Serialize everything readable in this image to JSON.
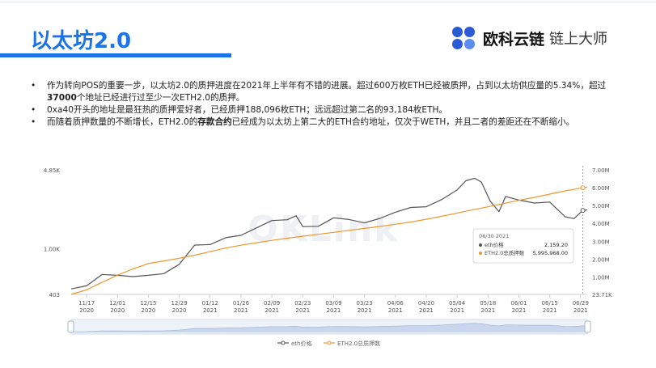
{
  "slide": {
    "title": "以太坊2.0",
    "brand_name": "欧科云链",
    "brand_subtitle": "链上大师"
  },
  "bullets": [
    {
      "parts": [
        "作为转向POS的重要一步，以太坊2.0的质押进度在2021年上半年有不错的进展。超过600万枚ETH已经被质押，占到以太坊供应量的5.34%，超过",
        "37000",
        "个地址已经进行过至少一次ETH2.0的质押。"
      ]
    },
    {
      "parts": [
        "0xa40开头的地址是最狂热的质押爱好者，已经质押188,096枚ETH；远远超过第二名的93,184枚ETH。"
      ]
    },
    {
      "parts": [
        "而随着质押数量的不断增长，ETH2.0的",
        "存款合约",
        "已经成为以太坊上第二大的ETH合约地址，仅次于WETH，并且二者的差距还在不断缩小。"
      ]
    }
  ],
  "chart_data": {
    "type": "line",
    "watermark": "OKLink",
    "x_ticks": [
      {
        "date": "11/17",
        "year": "2020"
      },
      {
        "date": "12/01",
        "year": "2020"
      },
      {
        "date": "12/15",
        "year": "2020"
      },
      {
        "date": "12/29",
        "year": "2020"
      },
      {
        "date": "01/12",
        "year": "2021"
      },
      {
        "date": "01/26",
        "year": "2021"
      },
      {
        "date": "02/09",
        "year": "2021"
      },
      {
        "date": "02/23",
        "year": "2021"
      },
      {
        "date": "03/09",
        "year": "2021"
      },
      {
        "date": "03/23",
        "year": "2021"
      },
      {
        "date": "04/06",
        "year": "2021"
      },
      {
        "date": "04/20",
        "year": "2021"
      },
      {
        "date": "05/04",
        "year": "2021"
      },
      {
        "date": "05/18",
        "year": "2021"
      },
      {
        "date": "06/01",
        "year": "2021"
      },
      {
        "date": "06/15",
        "year": "2021"
      },
      {
        "date": "06/29",
        "year": "2021"
      }
    ],
    "x_start": "2020-11-10",
    "x_end": "2021-07-02",
    "y_left_ticks": [
      {
        "label": "4.85K"
      },
      {
        "label": "1.00K"
      },
      {
        "label": "403"
      }
    ],
    "y_left_lim": [
      403,
      4850
    ],
    "y_left_scale": "log",
    "y_right_ticks": [
      "7.00M",
      "6.00M",
      "5.00M",
      "4.00M",
      "3.00M",
      "2.00M",
      "1.00M",
      "23.71K"
    ],
    "y_right_lim": [
      23710,
      7000000
    ],
    "series": [
      {
        "name": "eth价格",
        "axis": "left",
        "color": "#555555",
        "points": [
          [
            "2020-11-10",
            450
          ],
          [
            "2020-11-17",
            478
          ],
          [
            "2020-11-24",
            600
          ],
          [
            "2020-12-01",
            590
          ],
          [
            "2020-12-08",
            575
          ],
          [
            "2020-12-15",
            590
          ],
          [
            "2020-12-22",
            610
          ],
          [
            "2020-12-29",
            735
          ],
          [
            "2021-01-05",
            1080
          ],
          [
            "2021-01-12",
            1090
          ],
          [
            "2021-01-19",
            1250
          ],
          [
            "2021-01-26",
            1310
          ],
          [
            "2021-02-02",
            1520
          ],
          [
            "2021-02-09",
            1760
          ],
          [
            "2021-02-16",
            1790
          ],
          [
            "2021-02-20",
            1940
          ],
          [
            "2021-02-23",
            1560
          ],
          [
            "2021-03-02",
            1570
          ],
          [
            "2021-03-09",
            1860
          ],
          [
            "2021-03-16",
            1800
          ],
          [
            "2021-03-23",
            1680
          ],
          [
            "2021-03-30",
            1840
          ],
          [
            "2021-04-06",
            2080
          ],
          [
            "2021-04-13",
            2290
          ],
          [
            "2021-04-20",
            2320
          ],
          [
            "2021-04-27",
            2680
          ],
          [
            "2021-05-04",
            3250
          ],
          [
            "2021-05-08",
            3900
          ],
          [
            "2021-05-12",
            4100
          ],
          [
            "2021-05-15",
            3800
          ],
          [
            "2021-05-19",
            2600
          ],
          [
            "2021-05-23",
            2100
          ],
          [
            "2021-05-26",
            2850
          ],
          [
            "2021-06-01",
            2650
          ],
          [
            "2021-06-08",
            2500
          ],
          [
            "2021-06-15",
            2550
          ],
          [
            "2021-06-22",
            1900
          ],
          [
            "2021-06-26",
            1830
          ],
          [
            "2021-06-30",
            2159.2
          ],
          [
            "2021-07-02",
            2180
          ]
        ]
      },
      {
        "name": "ETH2.0总质押数",
        "axis": "right",
        "color": "#f0962e",
        "points": [
          [
            "2020-11-10",
            23710
          ],
          [
            "2020-11-17",
            280000
          ],
          [
            "2020-11-24",
            700000
          ],
          [
            "2020-12-01",
            1100000
          ],
          [
            "2020-12-08",
            1450000
          ],
          [
            "2020-12-15",
            1750000
          ],
          [
            "2020-12-22",
            1900000
          ],
          [
            "2020-12-29",
            2050000
          ],
          [
            "2021-01-05",
            2220000
          ],
          [
            "2021-01-12",
            2420000
          ],
          [
            "2021-01-19",
            2620000
          ],
          [
            "2021-01-26",
            2780000
          ],
          [
            "2021-02-02",
            2920000
          ],
          [
            "2021-02-09",
            3050000
          ],
          [
            "2021-02-16",
            3170000
          ],
          [
            "2021-02-23",
            3280000
          ],
          [
            "2021-03-02",
            3390000
          ],
          [
            "2021-03-09",
            3500000
          ],
          [
            "2021-03-16",
            3610000
          ],
          [
            "2021-03-23",
            3720000
          ],
          [
            "2021-03-30",
            3830000
          ],
          [
            "2021-04-06",
            3950000
          ],
          [
            "2021-04-13",
            4080000
          ],
          [
            "2021-04-20",
            4230000
          ],
          [
            "2021-04-27",
            4400000
          ],
          [
            "2021-05-04",
            4580000
          ],
          [
            "2021-05-11",
            4760000
          ],
          [
            "2021-05-18",
            4930000
          ],
          [
            "2021-05-25",
            5110000
          ],
          [
            "2021-06-01",
            5290000
          ],
          [
            "2021-06-08",
            5460000
          ],
          [
            "2021-06-15",
            5640000
          ],
          [
            "2021-06-22",
            5820000
          ],
          [
            "2021-06-30",
            5995968
          ],
          [
            "2021-07-02",
            6030000
          ]
        ]
      }
    ],
    "tooltip": {
      "date": "06/30 2021",
      "rows": [
        {
          "label": "eth价格",
          "value": "2,159.20",
          "color": "#555555"
        },
        {
          "label": "ETH2.0总质押数",
          "value": "5,995,968.00",
          "color": "#f0962e"
        }
      ]
    },
    "legend": [
      {
        "label": "eth价格",
        "color": "#555555"
      },
      {
        "label": "ETH2.0总质押数",
        "color": "#f0962e"
      }
    ],
    "legend_position": "bottom",
    "grid": false
  }
}
